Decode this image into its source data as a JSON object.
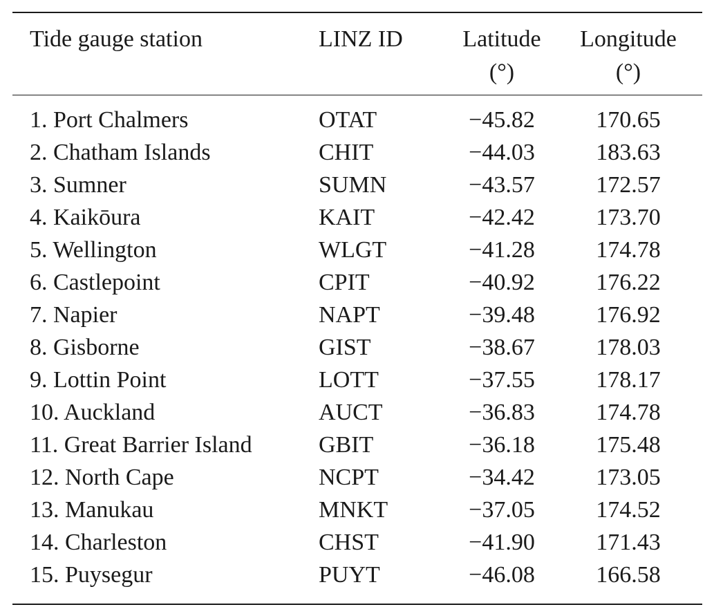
{
  "table": {
    "headers": {
      "station": "Tide gauge station",
      "linz_id": "LINZ ID",
      "latitude": "Latitude",
      "latitude_unit": "(°)",
      "longitude": "Longitude",
      "longitude_unit": "(°)"
    },
    "rows": [
      {
        "station": "1. Port Chalmers",
        "linz_id": "OTAT",
        "latitude": "−45.82",
        "longitude": "170.65"
      },
      {
        "station": "2. Chatham Islands",
        "linz_id": "CHIT",
        "latitude": "−44.03",
        "longitude": "183.63"
      },
      {
        "station": "3. Sumner",
        "linz_id": "SUMN",
        "latitude": "−43.57",
        "longitude": "172.57"
      },
      {
        "station": "4. Kaikōura",
        "linz_id": "KAIT",
        "latitude": "−42.42",
        "longitude": "173.70"
      },
      {
        "station": "5. Wellington",
        "linz_id": "WLGT",
        "latitude": "−41.28",
        "longitude": "174.78"
      },
      {
        "station": "6. Castlepoint",
        "linz_id": "CPIT",
        "latitude": "−40.92",
        "longitude": "176.22"
      },
      {
        "station": "7. Napier",
        "linz_id": "NAPT",
        "latitude": "−39.48",
        "longitude": "176.92"
      },
      {
        "station": "8. Gisborne",
        "linz_id": "GIST",
        "latitude": "−38.67",
        "longitude": "178.03"
      },
      {
        "station": "9. Lottin Point",
        "linz_id": "LOTT",
        "latitude": "−37.55",
        "longitude": "178.17"
      },
      {
        "station": "10. Auckland",
        "linz_id": "AUCT",
        "latitude": "−36.83",
        "longitude": "174.78"
      },
      {
        "station": "11. Great Barrier Island",
        "linz_id": "GBIT",
        "latitude": "−36.18",
        "longitude": "175.48"
      },
      {
        "station": "12. North Cape",
        "linz_id": "NCPT",
        "latitude": "−34.42",
        "longitude": "173.05"
      },
      {
        "station": "13. Manukau",
        "linz_id": "MNKT",
        "latitude": "−37.05",
        "longitude": "174.52"
      },
      {
        "station": "14. Charleston",
        "linz_id": "CHST",
        "latitude": "−41.90",
        "longitude": "171.43"
      },
      {
        "station": "15. Puysegur",
        "linz_id": "PUYT",
        "latitude": "−46.08",
        "longitude": "166.58"
      }
    ]
  }
}
